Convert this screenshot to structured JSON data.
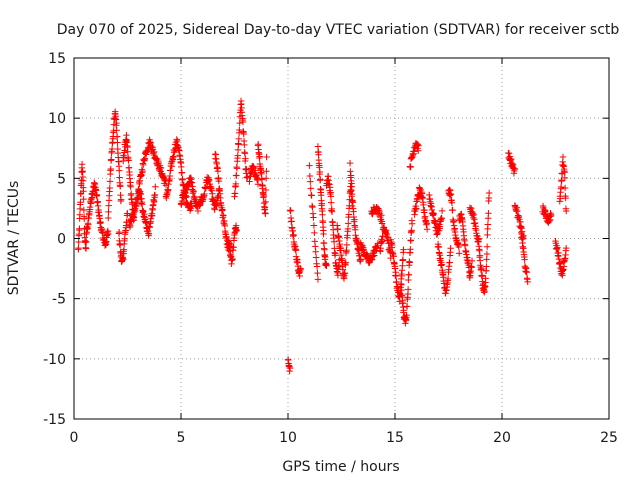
{
  "chart_data": {
    "type": "scatter",
    "title": "Day 070 of 2025, Sidereal Day-to-day VTEC variation (SDTVAR) for receiver sctb",
    "xlabel": "GPS time / hours",
    "ylabel": "SDTVAR / TECUs",
    "xlim": [
      0,
      25
    ],
    "ylim": [
      -15,
      15
    ],
    "x_ticks": [
      "0",
      "5",
      "10",
      "15",
      "20",
      "25"
    ],
    "y_ticks": [
      "15",
      "10",
      "5",
      "0",
      "-5",
      "-10",
      "-15"
    ],
    "grid": true,
    "marker": "+",
    "marker_color": "#ff0000",
    "series": [
      {
        "name": "SDTVAR",
        "segments": [
          {
            "x0": 0.2,
            "x1": 0.6,
            "y": [
              -1.0,
              0.5,
              2.5,
              4.5,
              6.0,
              5.0,
              2.0,
              0.0,
              -1.0,
              1.0
            ]
          },
          {
            "x0": 0.6,
            "x1": 1.6,
            "y": [
              0.5,
              1.5,
              2.5,
              3.5,
              4.0,
              4.5,
              4.0,
              3.0,
              2.0,
              1.0,
              0.5,
              0.0,
              -0.5,
              0.0,
              0.5
            ]
          },
          {
            "x0": 1.6,
            "x1": 2.2,
            "y": [
              2.0,
              4.0,
              6.5,
              8.0,
              9.5,
              10.5,
              9.0,
              7.0,
              5.0,
              3.0
            ]
          },
          {
            "x0": 2.1,
            "x1": 2.5,
            "y": [
              0.5,
              -1.0,
              -2.0,
              -1.5,
              0.0,
              1.0,
              2.0
            ]
          },
          {
            "x0": 2.3,
            "x1": 2.8,
            "y": [
              6.5,
              7.5,
              8.5,
              7.0,
              5.5,
              4.0,
              2.5,
              1.5
            ]
          },
          {
            "x0": 2.6,
            "x1": 3.8,
            "y": [
              1.0,
              1.5,
              2.0,
              2.5,
              3.0,
              3.5,
              4.0,
              3.0,
              2.0,
              1.5,
              1.0,
              0.5,
              1.0,
              2.0,
              3.0,
              4.0
            ]
          },
          {
            "x0": 3.0,
            "x1": 4.3,
            "y": [
              4.0,
              5.0,
              6.0,
              7.0,
              7.5,
              8.0,
              7.5,
              7.0,
              6.5,
              6.0,
              5.5,
              5.0,
              4.5
            ]
          },
          {
            "x0": 4.3,
            "x1": 5.5,
            "y": [
              3.5,
              4.0,
              5.5,
              6.5,
              7.5,
              8.0,
              7.5,
              6.0,
              4.5,
              3.5,
              3.0,
              2.5,
              3.0
            ]
          },
          {
            "x0": 5.0,
            "x1": 6.0,
            "y": [
              3.0,
              3.5,
              4.0,
              4.5,
              5.0,
              4.0,
              3.0,
              2.5,
              3.0,
              3.5
            ]
          },
          {
            "x0": 6.0,
            "x1": 6.8,
            "y": [
              3.0,
              4.0,
              5.0,
              4.5,
              3.5,
              2.5,
              3.0,
              4.0
            ]
          },
          {
            "x0": 6.6,
            "x1": 7.3,
            "y": [
              7.0,
              6.0,
              4.5,
              3.0,
              2.0,
              1.0,
              0.0,
              -1.0,
              -0.5
            ]
          },
          {
            "x0": 7.2,
            "x1": 7.6,
            "y": [
              0.0,
              -1.0,
              -2.0,
              -1.0,
              0.5,
              1.0
            ]
          },
          {
            "x0": 7.5,
            "x1": 8.1,
            "y": [
              3.5,
              5.0,
              7.0,
              9.0,
              11.5,
              10.0,
              8.0,
              6.0,
              5.0
            ]
          },
          {
            "x0": 8.2,
            "x1": 8.6,
            "y": [
              5.0,
              6.0,
              5.5,
              4.5
            ]
          },
          {
            "x0": 8.6,
            "x1": 9.0,
            "y": [
              8.0,
              7.0,
              6.0,
              5.0,
              4.0,
              3.0,
              2.0,
              6.5
            ]
          },
          {
            "x0": 10.0,
            "x1": 10.1,
            "y": [
              -10.0,
              -11.0
            ]
          },
          {
            "x0": 10.1,
            "x1": 10.6,
            "y": [
              2.5,
              1.0,
              0.0,
              -1.0,
              -2.0,
              -3.0,
              -2.5
            ]
          },
          {
            "x0": 11.0,
            "x1": 11.4,
            "y": [
              5.8,
              -3.3
            ]
          },
          {
            "x0": 11.4,
            "x1": 11.8,
            "y": [
              7.5,
              6.5,
              5.0,
              3.5,
              2.0,
              0.5,
              -1.0,
              -2.0,
              -2.5
            ]
          },
          {
            "x0": 11.8,
            "x1": 12.4,
            "y": [
              4.5,
              5.0,
              4.0,
              2.0,
              0.0,
              -2.0,
              -3.0,
              -2.0
            ]
          },
          {
            "x0": 12.3,
            "x1": 13.0,
            "y": [
              1.0,
              0.0,
              -1.0,
              -2.0,
              -3.5,
              -2.0,
              0.0,
              2.0,
              4.5,
              3.0
            ]
          },
          {
            "x0": 12.9,
            "x1": 13.4,
            "y": [
              6.0,
              4.0,
              2.0,
              0.5,
              -0.5,
              -1.0,
              -2.0
            ]
          },
          {
            "x0": 13.4,
            "x1": 14.2,
            "y": [
              -0.5,
              -1.0,
              -1.5,
              -2.0,
              -1.5,
              -1.0,
              -0.5
            ]
          },
          {
            "x0": 13.9,
            "x1": 14.4,
            "y": [
              2.0,
              2.5,
              2.2,
              1.5
            ]
          },
          {
            "x0": 14.3,
            "x1": 14.8,
            "y": [
              -1.0,
              0.0,
              1.0,
              0.5,
              -0.5,
              -1.5
            ]
          },
          {
            "x0": 14.8,
            "x1": 15.4,
            "y": [
              0.0,
              -1.0,
              -2.0,
              -3.5,
              -4.5,
              -5.0,
              -3.0,
              -1.0
            ]
          },
          {
            "x0": 15.3,
            "x1": 15.8,
            "y": [
              -4.0,
              -5.5,
              -6.5,
              -7.0,
              -6.0,
              -4.0,
              -2.0,
              0.0,
              1.5
            ]
          },
          {
            "x0": 15.7,
            "x1": 16.1,
            "y": [
              6.0,
              7.0,
              8.0,
              7.5
            ]
          },
          {
            "x0": 15.9,
            "x1": 16.5,
            "y": [
              2.0,
              3.0,
              4.0,
              3.5,
              2.0,
              1.0
            ]
          },
          {
            "x0": 16.6,
            "x1": 17.2,
            "y": [
              3.5,
              2.5,
              1.5,
              0.5,
              1.0,
              2.0
            ]
          },
          {
            "x0": 17.0,
            "x1": 17.6,
            "y": [
              -0.5,
              -1.5,
              -2.5,
              -4.0,
              -4.5,
              -3.0,
              -1.0
            ]
          },
          {
            "x0": 17.5,
            "x1": 18.0,
            "y": [
              4.0,
              3.5,
              1.0,
              0.0,
              -1.0
            ]
          },
          {
            "x0": 18.0,
            "x1": 18.6,
            "y": [
              1.5,
              2.0,
              0.5,
              -1.0,
              -2.0,
              -3.0,
              -2.0
            ]
          },
          {
            "x0": 18.5,
            "x1": 18.9,
            "y": [
              2.5,
              2.0,
              1.0,
              -0.5
            ]
          },
          {
            "x0": 18.9,
            "x1": 19.4,
            "y": [
              0.0,
              -1.5,
              -2.5,
              -3.5,
              -4.5,
              -4.0,
              -2.0,
              1.0,
              4.0
            ]
          },
          {
            "x0": 20.3,
            "x1": 20.6,
            "y": [
              7.0,
              6.5,
              6.0,
              5.5
            ]
          },
          {
            "x0": 20.6,
            "x1": 21.0,
            "y": [
              3.0,
              2.0,
              1.0,
              0.0
            ]
          },
          {
            "x0": 20.9,
            "x1": 21.2,
            "y": [
              0.5,
              -1.0,
              -2.5,
              -3.5
            ]
          },
          {
            "x0": 21.9,
            "x1": 22.3,
            "y": [
              2.5,
              2.0,
              1.5,
              2.0
            ]
          },
          {
            "x0": 22.5,
            "x1": 23.0,
            "y": [
              -0.5,
              -1.0,
              -2.0,
              -3.0,
              -2.0,
              -1.0
            ]
          },
          {
            "x0": 22.7,
            "x1": 23.0,
            "y": [
              3.0,
              4.5,
              6.5,
              5.5,
              2.0
            ]
          }
        ]
      }
    ]
  }
}
